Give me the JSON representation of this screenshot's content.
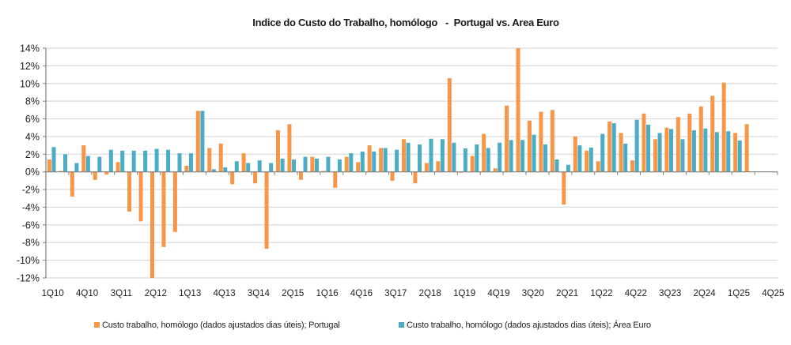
{
  "chart_data": {
    "type": "bar",
    "title": "Indice do Custo do Trabalho, homólogo   -  Portugal vs. Area Euro",
    "xlabel": "",
    "ylabel": "",
    "ylim": [
      -12,
      14
    ],
    "yticks": [
      14,
      12,
      10,
      8,
      6,
      4,
      2,
      0,
      -2,
      -4,
      -6,
      -8,
      -10,
      -12
    ],
    "ytick_labels": [
      "14%",
      "12%",
      "10%",
      "8%",
      "6%",
      "4%",
      "2%",
      "0%",
      "-2%",
      "-4%",
      "-6%",
      "-8%",
      "-10%",
      "-12%"
    ],
    "grid": true,
    "legend_position": "bottom",
    "categories": [
      "1Q10",
      "2Q10",
      "3Q10",
      "4Q10",
      "1Q11",
      "2Q11",
      "3Q11",
      "4Q11",
      "1Q12",
      "2Q12",
      "3Q12",
      "4Q12",
      "1Q13",
      "2Q13",
      "3Q13",
      "4Q13",
      "1Q14",
      "2Q14",
      "3Q14",
      "4Q14",
      "1Q15",
      "2Q15",
      "3Q15",
      "4Q15",
      "1Q16",
      "2Q16",
      "3Q16",
      "4Q16",
      "1Q17",
      "2Q17",
      "3Q17",
      "4Q17",
      "1Q18",
      "2Q18",
      "3Q18",
      "4Q18",
      "1Q19",
      "2Q19",
      "3Q19",
      "4Q19",
      "1Q20",
      "2Q20",
      "3Q20",
      "4Q20",
      "1Q21",
      "2Q21",
      "3Q21",
      "4Q21",
      "1Q22",
      "2Q22",
      "3Q22",
      "4Q22",
      "1Q23",
      "2Q23",
      "3Q23",
      "4Q23",
      "1Q24",
      "2Q24",
      "3Q24",
      "4Q24",
      "1Q25",
      "2Q25",
      "3Q25",
      "4Q25"
    ],
    "xtick_labels": [
      "1Q10",
      "4Q10",
      "3Q11",
      "2Q12",
      "1Q13",
      "4Q13",
      "3Q14",
      "2Q15",
      "1Q16",
      "4Q16",
      "3Q17",
      "2Q18",
      "1Q19",
      "4Q19",
      "3Q20",
      "2Q21",
      "1Q22",
      "4Q22",
      "3Q23",
      "2Q24",
      "1Q25",
      "4Q25"
    ],
    "series": [
      {
        "name": "Custo trabalho, homólogo (dados ajustados dias úteis); Portugal",
        "color": "#F79646",
        "values": [
          1.4,
          0.1,
          -2.8,
          3.0,
          -0.9,
          -0.3,
          1.1,
          -4.5,
          -5.6,
          -12.0,
          -8.5,
          -6.8,
          0.7,
          6.9,
          2.7,
          3.2,
          -1.4,
          2.1,
          -1.3,
          -8.7,
          4.7,
          5.4,
          -0.9,
          1.7,
          0.1,
          -1.8,
          1.7,
          1.1,
          3.0,
          2.7,
          -1.0,
          3.7,
          -1.3,
          1.0,
          1.2,
          10.6,
          -0.1,
          1.8,
          4.3,
          0.4,
          7.5,
          14.0,
          5.8,
          6.8,
          7.0,
          -3.7,
          4.0,
          2.4,
          1.2,
          5.7,
          4.4,
          1.3,
          6.6,
          3.7,
          5.0,
          6.2,
          6.6,
          7.4,
          8.6,
          10.1,
          4.4,
          5.4,
          null,
          null
        ]
      },
      {
        "name": "Custo trabalho, homólogo (dados ajustados dias úteis); Área Euro",
        "color": "#4BACC6",
        "values": [
          2.8,
          2.0,
          1.0,
          1.8,
          1.7,
          2.5,
          2.4,
          2.4,
          2.4,
          2.6,
          2.5,
          2.1,
          2.1,
          6.9,
          0.3,
          0.5,
          1.2,
          1.0,
          1.3,
          1.0,
          1.5,
          1.4,
          1.7,
          1.5,
          1.7,
          1.4,
          2.1,
          2.3,
          2.3,
          2.7,
          2.5,
          3.3,
          3.1,
          3.75,
          3.7,
          3.3,
          2.65,
          3.1,
          2.7,
          3.3,
          3.6,
          3.6,
          4.2,
          3.1,
          1.4,
          0.8,
          3.0,
          2.75,
          4.3,
          5.5,
          3.2,
          5.9,
          5.35,
          4.4,
          4.85,
          3.7,
          4.7,
          4.9,
          4.5,
          4.6,
          3.55,
          null,
          null,
          null
        ]
      }
    ]
  }
}
